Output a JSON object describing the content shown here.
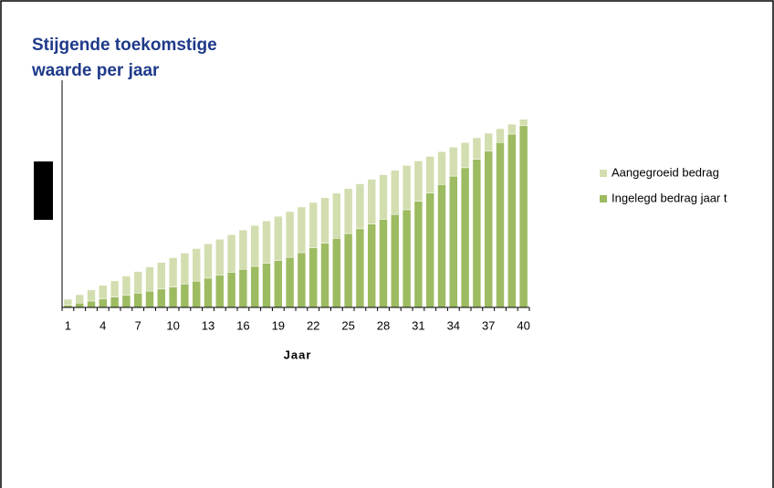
{
  "chart_data": {
    "type": "stacked_bar",
    "title_lines": [
      "Stijgende toekomstige",
      "waarde per jaar"
    ],
    "x_label": "Jaar",
    "categories": [
      "1",
      null,
      null,
      "4",
      null,
      null,
      "7",
      null,
      null,
      "10",
      null,
      null,
      "13",
      null,
      null,
      "16",
      null,
      null,
      "19",
      null,
      null,
      "22",
      null,
      null,
      "25",
      null,
      null,
      "28",
      null,
      null,
      "31",
      null,
      null,
      "34",
      null,
      null,
      "37",
      null,
      null,
      "40"
    ],
    "series": [
      {
        "name": "Ingelegd bedrag jaar t",
        "color": "#9dbb61",
        "values": [
          1.0,
          1.9,
          2.8,
          3.7,
          4.6,
          5.4,
          6.3,
          7.2,
          8.1,
          9.0,
          10.3,
          11.6,
          12.9,
          14.2,
          15.5,
          16.8,
          18.1,
          19.4,
          20.7,
          22.0,
          24.1,
          26.2,
          28.3,
          30.4,
          32.5,
          34.6,
          36.7,
          38.8,
          40.9,
          43.0,
          46.7,
          50.4,
          54.1,
          57.8,
          61.5,
          65.2,
          68.9,
          72.6,
          76.3,
          80.0
        ]
      },
      {
        "name": "Aangegroeid bedrag",
        "color": "#d3deb0",
        "values": [
          2.6,
          3.7,
          4.9,
          6.0,
          7.1,
          8.4,
          9.5,
          10.6,
          11.7,
          12.9,
          13.6,
          14.3,
          15.1,
          15.8,
          16.5,
          17.3,
          18.0,
          18.7,
          19.4,
          20.2,
          20.1,
          20.0,
          20.0,
          19.9,
          19.8,
          19.8,
          19.7,
          19.6,
          19.5,
          19.5,
          17.8,
          16.1,
          14.5,
          12.8,
          11.1,
          9.5,
          7.8,
          6.1,
          4.4,
          2.8
        ]
      }
    ],
    "ylim": [
      0,
      100
    ],
    "legend": "right"
  }
}
